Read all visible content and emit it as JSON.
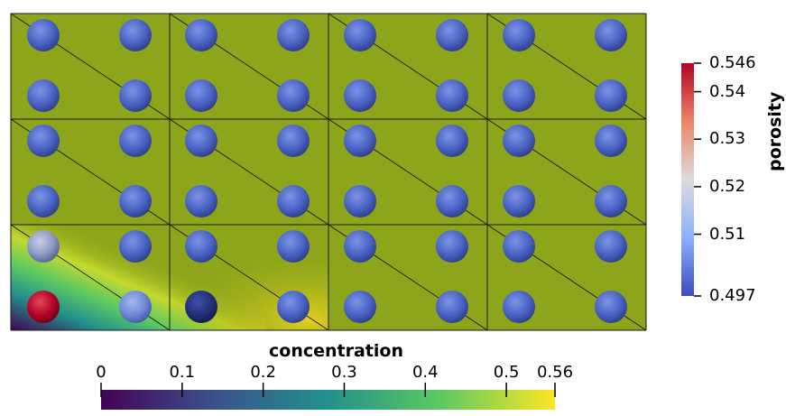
{
  "mesh": {
    "columns": 4,
    "rows": 3,
    "background_color": "#8da51a",
    "sphere_color_default": "#4a63c4"
  },
  "porosity_colorbar": {
    "title": "porosity",
    "range": [
      0.497,
      0.546
    ],
    "tick_labels": [
      "0.546",
      "0.54",
      "0.53",
      "0.52",
      "0.51",
      "0.497"
    ],
    "tick_values": [
      0.546,
      0.54,
      0.53,
      0.52,
      0.51,
      0.497
    ],
    "colors": [
      "#b40426",
      "#dd5f4b",
      "#f7b89c",
      "#dddcdc",
      "#9ebeff",
      "#3b4cc0"
    ]
  },
  "concentration_colorbar": {
    "title": "concentration",
    "range": [
      0,
      0.56
    ],
    "tick_labels": [
      "0",
      "0.1",
      "0.2",
      "0.3",
      "0.4",
      "0.5",
      "0.56"
    ],
    "tick_values": [
      0,
      0.1,
      0.2,
      0.3,
      0.4,
      0.5,
      0.56
    ],
    "colors": [
      "#440154",
      "#3b528b",
      "#21918c",
      "#5ec962",
      "#fde725"
    ]
  }
}
